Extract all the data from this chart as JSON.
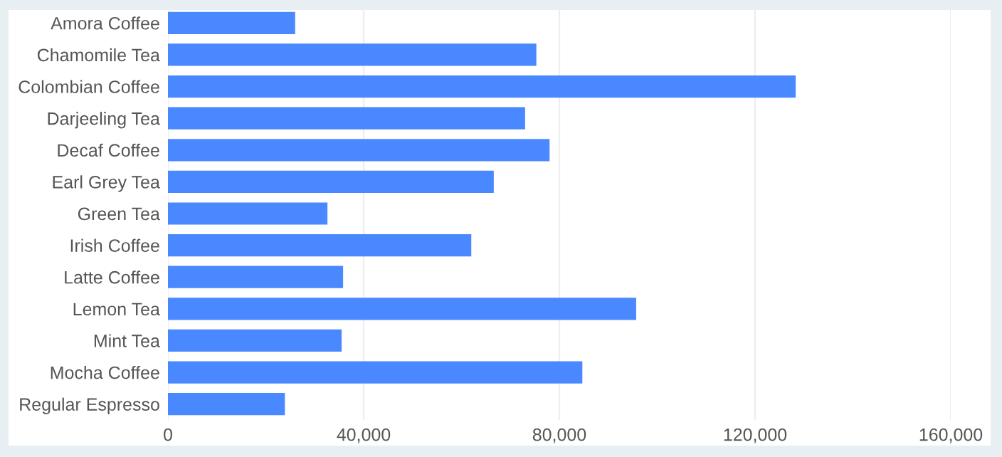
{
  "chart_data": {
    "type": "bar",
    "orientation": "horizontal",
    "categories": [
      "Amora Coffee",
      "Chamomile Tea",
      "Colombian Coffee",
      "Darjeeling Tea",
      "Decaf Coffee",
      "Earl Grey Tea",
      "Green Tea",
      "Irish Coffee",
      "Latte Coffee",
      "Lemon Tea",
      "Mint Tea",
      "Mocha Coffee",
      "Regular Espresso"
    ],
    "values": [
      26000,
      75300,
      128300,
      73000,
      78000,
      66600,
      32600,
      62000,
      35800,
      95700,
      35500,
      84700,
      23900
    ],
    "color": "#4a88ff",
    "xlim": [
      0,
      160000
    ],
    "xticks": [
      {
        "value": 0,
        "label": "0"
      },
      {
        "value": 40000,
        "label": "40,000"
      },
      {
        "value": 80000,
        "label": "80,000"
      },
      {
        "value": 120000,
        "label": "120,000"
      },
      {
        "value": 160000,
        "label": "160,000"
      }
    ],
    "grid": "x"
  }
}
